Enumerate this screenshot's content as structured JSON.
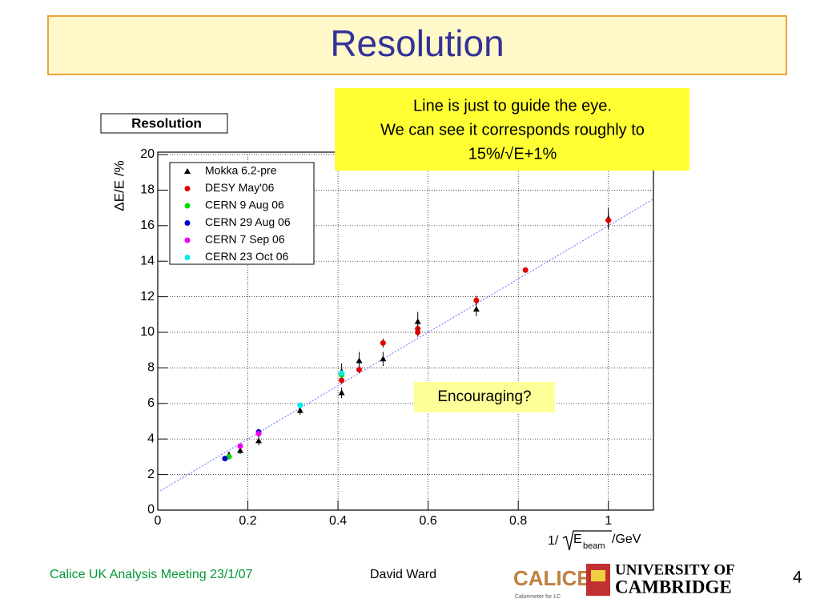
{
  "slide": {
    "title": "Resolution",
    "footer_left": "Calice UK Analysis Meeting 23/1/07",
    "footer_author": "David Ward",
    "page_number": "4",
    "logo_calice": "CALICE",
    "logo_calice_sub": "Calorimeter for LC",
    "logo_univ_line1": "UNIVERSITY OF",
    "logo_univ_line2": "CAMBRIDGE"
  },
  "chart_data": {
    "type": "scatter",
    "title": "Resolution",
    "y_label": "ΔE/E /%",
    "x_label_parts": [
      "1/",
      "E",
      "beam",
      " /GeV"
    ],
    "annotations": [
      {
        "lines": [
          "Line is just to guide the eye.",
          "We can see it corresponds roughly to",
          "15%/√E+1%"
        ]
      },
      {
        "lines": [
          "Encouraging?"
        ]
      }
    ],
    "xlim": [
      0,
      1.1
    ],
    "ylim": [
      0,
      20
    ],
    "xticks": [
      0,
      0.2,
      0.4,
      0.6,
      0.8,
      1
    ],
    "yticks": [
      0,
      2,
      4,
      6,
      8,
      10,
      12,
      14,
      16,
      18,
      20
    ],
    "grid": true,
    "legend": "upper left",
    "series": [
      {
        "name": "Mokka 6.2-pre",
        "color": "#000000",
        "marker": "triangle",
        "x": [
          0.158,
          0.183,
          0.224,
          0.316,
          0.408,
          0.408,
          0.447,
          0.5,
          0.577,
          0.707,
          1.0
        ],
        "values": [
          3.1,
          3.35,
          3.9,
          5.6,
          6.6,
          7.8,
          8.4,
          8.5,
          10.6,
          11.3,
          16.4
        ],
        "errors": [
          0.2,
          0.2,
          0.25,
          0.25,
          0.3,
          0.45,
          0.5,
          0.4,
          0.55,
          0.4,
          0.6
        ]
      },
      {
        "name": "DESY May'06",
        "color": "#e00000",
        "marker": "circle",
        "x": [
          0.408,
          0.447,
          0.5,
          0.577,
          0.577,
          0.707,
          0.816,
          1.0
        ],
        "values": [
          7.3,
          7.9,
          9.4,
          10.2,
          10.0,
          11.8,
          13.5,
          16.3
        ],
        "errors": [
          0.2,
          0.2,
          0.25,
          0.25,
          0.25,
          0.25,
          0.15,
          0.4
        ]
      },
      {
        "name": "CERN 9 Aug 06",
        "color": "#00dd00",
        "marker": "circle",
        "x": [
          0.158,
          0.408
        ],
        "values": [
          3.0,
          7.6
        ],
        "errors": [
          0.1,
          0.15
        ]
      },
      {
        "name": "CERN 29 Aug 06",
        "color": "#0000cc",
        "marker": "circle",
        "x": [
          0.149,
          0.224
        ],
        "values": [
          2.9,
          4.4
        ],
        "errors": [
          0.1,
          0.15
        ]
      },
      {
        "name": "CERN 7 Sep 06",
        "color": "#ee00ee",
        "marker": "circle",
        "x": [
          0.183,
          0.224
        ],
        "values": [
          3.6,
          4.3
        ],
        "errors": [
          0.1,
          0.15
        ]
      },
      {
        "name": "CERN 23 Oct 06",
        "color": "#00eeee",
        "marker": "circle",
        "x": [
          0.316,
          0.408
        ],
        "values": [
          5.9,
          7.7
        ],
        "errors": [
          0.1,
          0.15
        ]
      }
    ],
    "guide_line": {
      "x": [
        0,
        1.1
      ],
      "values": [
        1,
        17.5
      ],
      "color": "#8080ff"
    }
  }
}
